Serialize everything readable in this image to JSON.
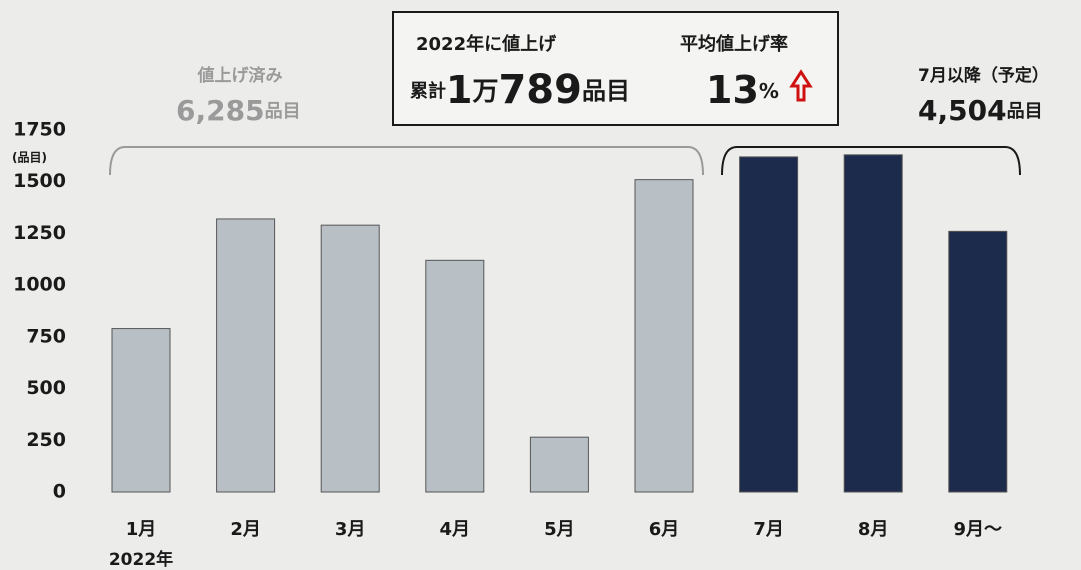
{
  "chart_data": {
    "type": "bar",
    "categories": [
      "1月",
      "2月",
      "3月",
      "4月",
      "5月",
      "6月",
      "7月",
      "8月",
      "9月～"
    ],
    "values": [
      790,
      1320,
      1290,
      1120,
      265,
      1510,
      1620,
      1630,
      1260
    ],
    "colors": [
      "#b9c0c5",
      "#b9c0c5",
      "#b9c0c5",
      "#b9c0c5",
      "#b9c0c5",
      "#b9c0c5",
      "#1c2b4c",
      "#1c2b4c",
      "#1c2b4c"
    ],
    "ylim": [
      0,
      1750
    ],
    "yticks": [
      0,
      250,
      500,
      750,
      1000,
      1250,
      1500,
      1750
    ],
    "y_unit": "(品目)",
    "x_annotation": "2022年",
    "done_label": "値上げ済み",
    "done_total": [
      "6,285",
      "品目"
    ],
    "planned_label": "7月以降（予定）",
    "planned_total": [
      "4,504",
      "品目"
    ],
    "box": {
      "heading": "2022年に値上げ",
      "total": [
        "累計",
        "1",
        "万",
        "789",
        "品目"
      ],
      "rate_label": "平均値上げ率",
      "rate": [
        "13",
        "%"
      ]
    }
  }
}
